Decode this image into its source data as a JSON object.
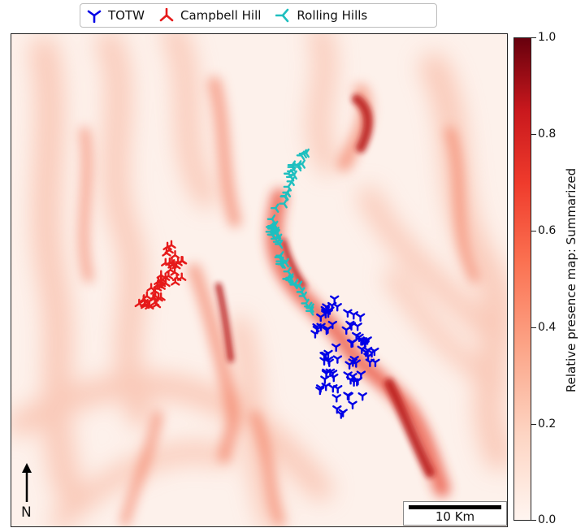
{
  "legend": {
    "items": [
      {
        "label": "TOTW",
        "color": "#0000e6",
        "marker": "tri-down"
      },
      {
        "label": "Campbell Hill",
        "color": "#e61a1a",
        "marker": "tri-up"
      },
      {
        "label": "Rolling Hills",
        "color": "#1fbfbf",
        "marker": "tri-left"
      }
    ]
  },
  "colorbar": {
    "label": "Relative presence map: Summarized",
    "ticks": [
      "1.0",
      "0.8",
      "0.6",
      "0.4",
      "0.2",
      "0.0"
    ],
    "range": [
      0.0,
      1.0
    ],
    "colormap": "Reds"
  },
  "scale_bar": {
    "label": "10 Km"
  },
  "north_arrow": {
    "label": "N"
  },
  "colors": {
    "totw": "#0000e6",
    "campbell_hill": "#e61a1a",
    "rolling_hills": "#1fbfbf"
  }
}
